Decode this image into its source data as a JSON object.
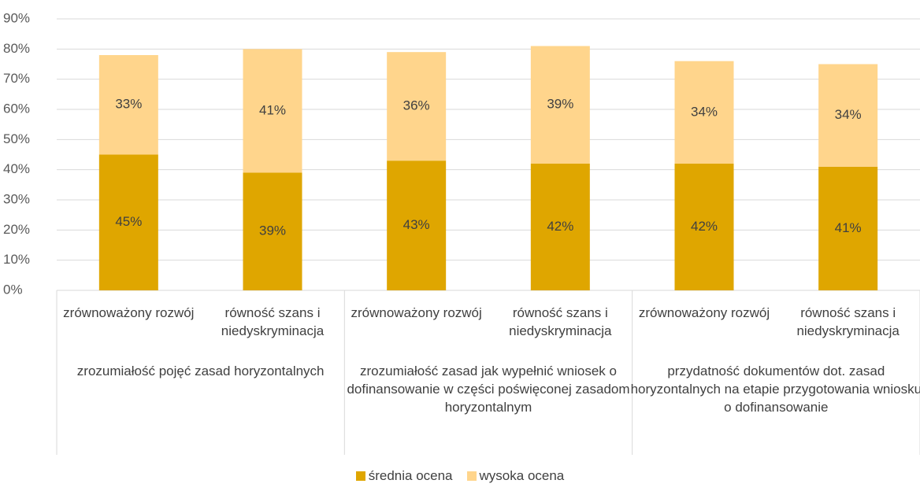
{
  "chart_data": {
    "type": "bar",
    "stacked": true,
    "categories": [
      "zrównoważony rozwój",
      "równość szans i niedyskryminacja",
      "zrównoważony rozwój",
      "równość szans i niedyskryminacja",
      "zrównoważony rozwój",
      "równość szans i niedyskryminacja"
    ],
    "groups": [
      "zrozumiałość pojęć zasad horyzontalnych",
      "zrozumiałość zasad jak wypełnić wniosek o dofinansowanie w części poświęconej zasadom horyzontalnym",
      "przydatność dokumentów dot. zasad horyzontalnych na etapie przygotowania wniosku o dofinansowanie"
    ],
    "series": [
      {
        "name": "średnia ocena",
        "color": "#dfa600",
        "values": [
          45,
          39,
          43,
          42,
          42,
          41
        ],
        "value_labels": [
          "45%",
          "39%",
          "43%",
          "42%",
          "42%",
          "41%"
        ]
      },
      {
        "name": "wysoka ocena",
        "color": "#ffd58c",
        "values": [
          33,
          41,
          36,
          39,
          34,
          34
        ],
        "value_labels": [
          "33%",
          "41%",
          "36%",
          "39%",
          "34%",
          "34%"
        ]
      }
    ],
    "ylim": [
      0,
      90
    ],
    "yticks": [
      {
        "value": 0,
        "label": "0%"
      },
      {
        "value": 10,
        "label": "10%"
      },
      {
        "value": 20,
        "label": "20%"
      },
      {
        "value": 30,
        "label": "30%"
      },
      {
        "value": 40,
        "label": "40%"
      },
      {
        "value": 50,
        "label": "50%"
      },
      {
        "value": 60,
        "label": "60%"
      },
      {
        "value": 70,
        "label": "70%"
      },
      {
        "value": 80,
        "label": "80%"
      },
      {
        "value": 90,
        "label": "90%"
      }
    ],
    "grid": true,
    "legend": "bottom"
  }
}
